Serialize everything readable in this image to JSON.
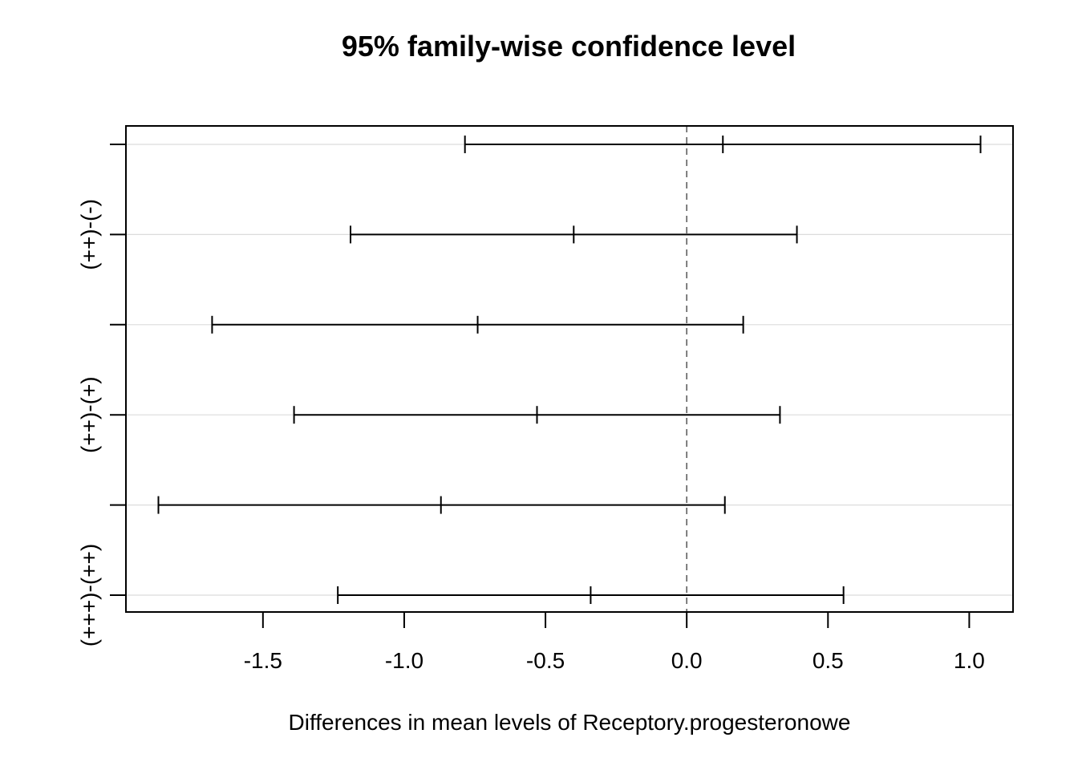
{
  "chart_data": {
    "type": "interval",
    "title": "95% family-wise confidence level",
    "xlabel": "Differences in mean levels of Receptory.progesteronowe",
    "ylabel": "",
    "xlim": [
      -1.985,
      1.155
    ],
    "x_ticks": [
      -1.5,
      -1.0,
      -0.5,
      0.0,
      0.5,
      1.0
    ],
    "x_tick_labels": [
      "-1.5",
      "-1.0",
      "-0.5",
      "0.0",
      "0.5",
      "1.0"
    ],
    "reference_line": 0.0,
    "grid": true,
    "y_labels_shown": [
      {
        "index": 1,
        "label": "(++)-(-)"
      },
      {
        "index": 3,
        "label": "(++)-(+)"
      },
      {
        "index": 5,
        "label": "(+++)-(++)"
      }
    ],
    "intervals": [
      {
        "lwr": -0.785,
        "diff": 0.128,
        "upr": 1.04
      },
      {
        "lwr": -1.19,
        "diff": -0.4,
        "upr": 0.39
      },
      {
        "lwr": -1.68,
        "diff": -0.74,
        "upr": 0.2
      },
      {
        "lwr": -1.39,
        "diff": -0.53,
        "upr": 0.33
      },
      {
        "lwr": -1.87,
        "diff": -0.87,
        "upr": 0.135
      },
      {
        "lwr": -1.235,
        "diff": -0.34,
        "upr": 0.555
      }
    ]
  }
}
